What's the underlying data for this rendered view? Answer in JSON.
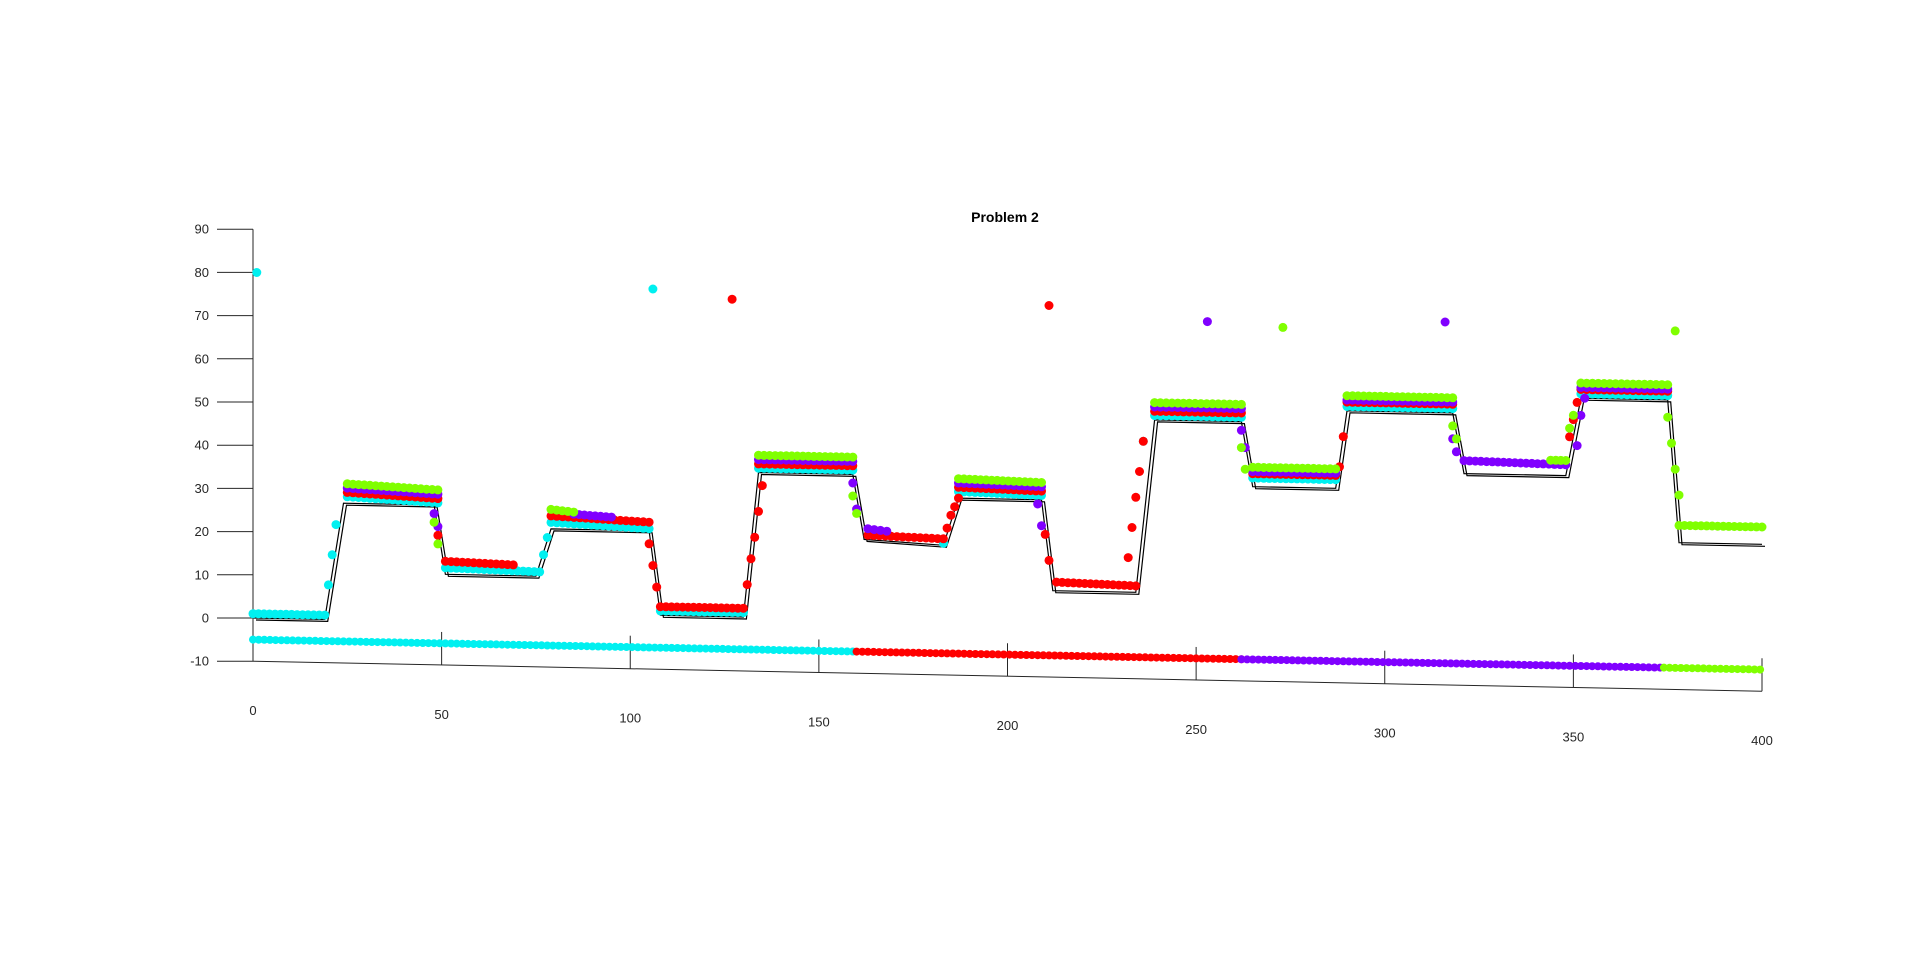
{
  "chart_data": {
    "type": "scatter",
    "title": "Problem 2",
    "xlabel": "",
    "ylabel": "",
    "xlim": [
      0,
      400
    ],
    "ylim": [
      -10,
      90
    ],
    "xticks": [
      0,
      50,
      100,
      150,
      200,
      250,
      300,
      350,
      400
    ],
    "yticks": [
      -10,
      0,
      10,
      20,
      30,
      40,
      50,
      60,
      70,
      80,
      90
    ],
    "view": "3d-perspective",
    "grid": false,
    "legend": "none",
    "colors": {
      "cyan": "#00f0f0",
      "red": "#ff0000",
      "purple": "#8000ff",
      "green": "#80ff00",
      "reference": "#000000"
    },
    "reference_path": [
      [
        0,
        0
      ],
      [
        19,
        0
      ],
      [
        24,
        27
      ],
      [
        48,
        27
      ],
      [
        51,
        11
      ],
      [
        75,
        11
      ],
      [
        79,
        22
      ],
      [
        105,
        22
      ],
      [
        108,
        2.5
      ],
      [
        130,
        2.5
      ],
      [
        134,
        36
      ],
      [
        159,
        36
      ],
      [
        162,
        21
      ],
      [
        183,
        20
      ],
      [
        187,
        31
      ],
      [
        209,
        31
      ],
      [
        212,
        10
      ],
      [
        234,
        10
      ],
      [
        239,
        50
      ],
      [
        262,
        50
      ],
      [
        265,
        35
      ],
      [
        287,
        35
      ],
      [
        290,
        53
      ],
      [
        318,
        53
      ],
      [
        321,
        39
      ],
      [
        348,
        39
      ],
      [
        352,
        57
      ],
      [
        375,
        57
      ],
      [
        378,
        24
      ],
      [
        400,
        24
      ]
    ],
    "series": [
      {
        "color": "cyan",
        "segments": [
          [
            0,
            1,
            19,
            1
          ],
          [
            25,
            28.5,
            49,
            27.5
          ],
          [
            51,
            12.5,
            76,
            12
          ],
          [
            79,
            23.5,
            105,
            22.5
          ],
          [
            108,
            3.5,
            130,
            3.5
          ],
          [
            134,
            37,
            159,
            37
          ],
          [
            183,
            20.5,
            183,
            20.5
          ],
          [
            187,
            32.5,
            209,
            32
          ],
          [
            239,
            51,
            262,
            51
          ],
          [
            265,
            37,
            287,
            37
          ],
          [
            290,
            54,
            318,
            54
          ],
          [
            352,
            58,
            375,
            58
          ]
        ],
        "transition_points": [
          [
            20,
            8
          ],
          [
            21,
            15
          ],
          [
            22,
            22
          ],
          [
            77,
            16
          ],
          [
            78,
            20
          ],
          [
            236,
            45
          ]
        ],
        "outliers": [
          [
            1,
            80
          ],
          [
            106,
            78
          ]
        ]
      },
      {
        "color": "red",
        "segments": [
          [
            25,
            29.5,
            49,
            28.5
          ],
          [
            51,
            14,
            69,
            13.5
          ],
          [
            79,
            25,
            105,
            24
          ],
          [
            108,
            4.5,
            130,
            4.5
          ],
          [
            134,
            38,
            159,
            38
          ],
          [
            163,
            22,
            183,
            21.5
          ],
          [
            187,
            33.5,
            209,
            33
          ],
          [
            213,
            12,
            234,
            11.5
          ],
          [
            239,
            52,
            262,
            52
          ],
          [
            265,
            38,
            287,
            38
          ],
          [
            290,
            55,
            318,
            55
          ],
          [
            352,
            59,
            375,
            59
          ]
        ],
        "transition_points": [
          [
            49,
            20
          ],
          [
            105,
            19
          ],
          [
            106,
            14
          ],
          [
            107,
            9
          ],
          [
            131,
            10
          ],
          [
            132,
            16
          ],
          [
            133,
            21
          ],
          [
            134,
            27
          ],
          [
            135,
            33
          ],
          [
            184,
            24
          ],
          [
            185,
            27
          ],
          [
            186,
            29
          ],
          [
            187,
            31
          ],
          [
            210,
            23
          ],
          [
            211,
            17
          ],
          [
            232,
            18
          ],
          [
            233,
            25
          ],
          [
            234,
            32
          ],
          [
            235,
            38
          ],
          [
            236,
            45
          ],
          [
            288,
            40
          ],
          [
            289,
            47
          ],
          [
            349,
            48
          ],
          [
            350,
            52
          ],
          [
            351,
            56
          ]
        ],
        "outliers": [
          [
            127,
            76
          ],
          [
            211,
            76
          ]
        ]
      },
      {
        "color": "purple",
        "segments": [
          [
            25,
            30.5,
            49,
            29.5
          ],
          [
            85,
            25.5,
            95,
            25
          ],
          [
            134,
            39,
            159,
            39
          ],
          [
            163,
            23.5,
            168,
            23
          ],
          [
            187,
            34.5,
            209,
            34
          ],
          [
            239,
            53,
            262,
            53
          ],
          [
            265,
            38.5,
            287,
            38.5
          ],
          [
            290,
            55.5,
            318,
            55.5
          ],
          [
            321,
            42,
            348,
            41.5
          ],
          [
            352,
            59.5,
            375,
            59.5
          ]
        ],
        "transition_points": [
          [
            48,
            25
          ],
          [
            49,
            22
          ],
          [
            159,
            34
          ],
          [
            160,
            28
          ],
          [
            208,
            30
          ],
          [
            209,
            25
          ],
          [
            262,
            48
          ],
          [
            263,
            44
          ],
          [
            318,
            47
          ],
          [
            319,
            44
          ],
          [
            351,
            46
          ],
          [
            352,
            53
          ],
          [
            353,
            57
          ]
        ],
        "outliers": [
          [
            253,
            73
          ],
          [
            316,
            74
          ]
        ]
      },
      {
        "color": "green",
        "segments": [
          [
            25,
            31.5,
            49,
            30.5
          ],
          [
            79,
            26.5,
            85,
            26
          ],
          [
            134,
            40,
            159,
            40
          ],
          [
            187,
            35.5,
            209,
            35
          ],
          [
            239,
            54,
            262,
            54
          ],
          [
            265,
            39.5,
            287,
            39.5
          ],
          [
            290,
            56.5,
            318,
            56.5
          ],
          [
            344,
            42.5,
            348,
            42.5
          ],
          [
            352,
            60.5,
            375,
            60.5
          ],
          [
            378,
            28,
            400,
            28
          ]
        ],
        "transition_points": [
          [
            48,
            23
          ],
          [
            49,
            18
          ],
          [
            159,
            31
          ],
          [
            160,
            27
          ],
          [
            262,
            44
          ],
          [
            263,
            39
          ],
          [
            318,
            50
          ],
          [
            319,
            47
          ],
          [
            349,
            50
          ],
          [
            350,
            53
          ],
          [
            375,
            53
          ],
          [
            376,
            47
          ],
          [
            377,
            41
          ],
          [
            378,
            35
          ]
        ],
        "outliers": [
          [
            273,
            72
          ],
          [
            377,
            73
          ]
        ]
      }
    ],
    "time_bar": [
      {
        "color": "cyan",
        "from": 0,
        "to": 160
      },
      {
        "color": "red",
        "from": 160,
        "to": 262
      },
      {
        "color": "purple",
        "from": 262,
        "to": 374
      },
      {
        "color": "green",
        "from": 374,
        "to": 400
      }
    ]
  }
}
